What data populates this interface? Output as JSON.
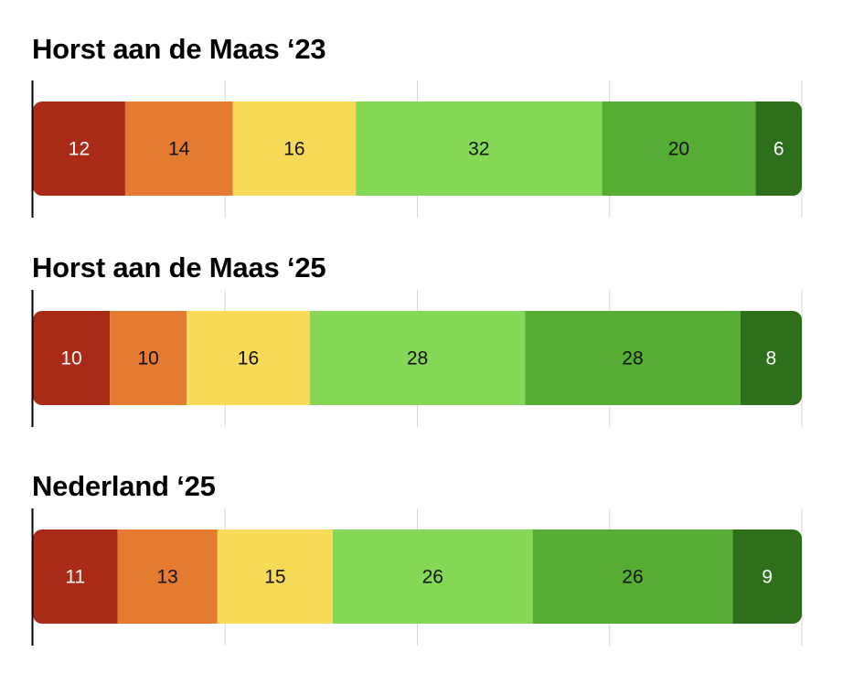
{
  "colors": [
    "#a82a17",
    "#e47b31",
    "#f8da59",
    "#84d856",
    "#55ad33",
    "#2e6f1c"
  ],
  "chart_data": [
    {
      "type": "bar",
      "orientation": "horizontal",
      "stacked": true,
      "title": "Horst aan de Maas ‘23",
      "values": [
        12,
        14,
        16,
        32,
        20,
        6
      ],
      "labels": [
        "12",
        "14",
        "16",
        "32",
        "20",
        "6"
      ],
      "xlim": [
        0,
        100
      ],
      "grid": true
    },
    {
      "type": "bar",
      "orientation": "horizontal",
      "stacked": true,
      "title": "Horst aan de Maas ‘25",
      "values": [
        10,
        10,
        16,
        28,
        28,
        8
      ],
      "labels": [
        "10",
        "10",
        "16",
        "28",
        "28",
        "8"
      ],
      "xlim": [
        0,
        100
      ],
      "grid": true
    },
    {
      "type": "bar",
      "orientation": "horizontal",
      "stacked": true,
      "title": "Nederland ‘25",
      "values": [
        11,
        13,
        15,
        26,
        26,
        9
      ],
      "labels": [
        "11",
        "13",
        "15",
        "26",
        "26",
        "9"
      ],
      "xlim": [
        0,
        100
      ],
      "grid": true
    }
  ]
}
